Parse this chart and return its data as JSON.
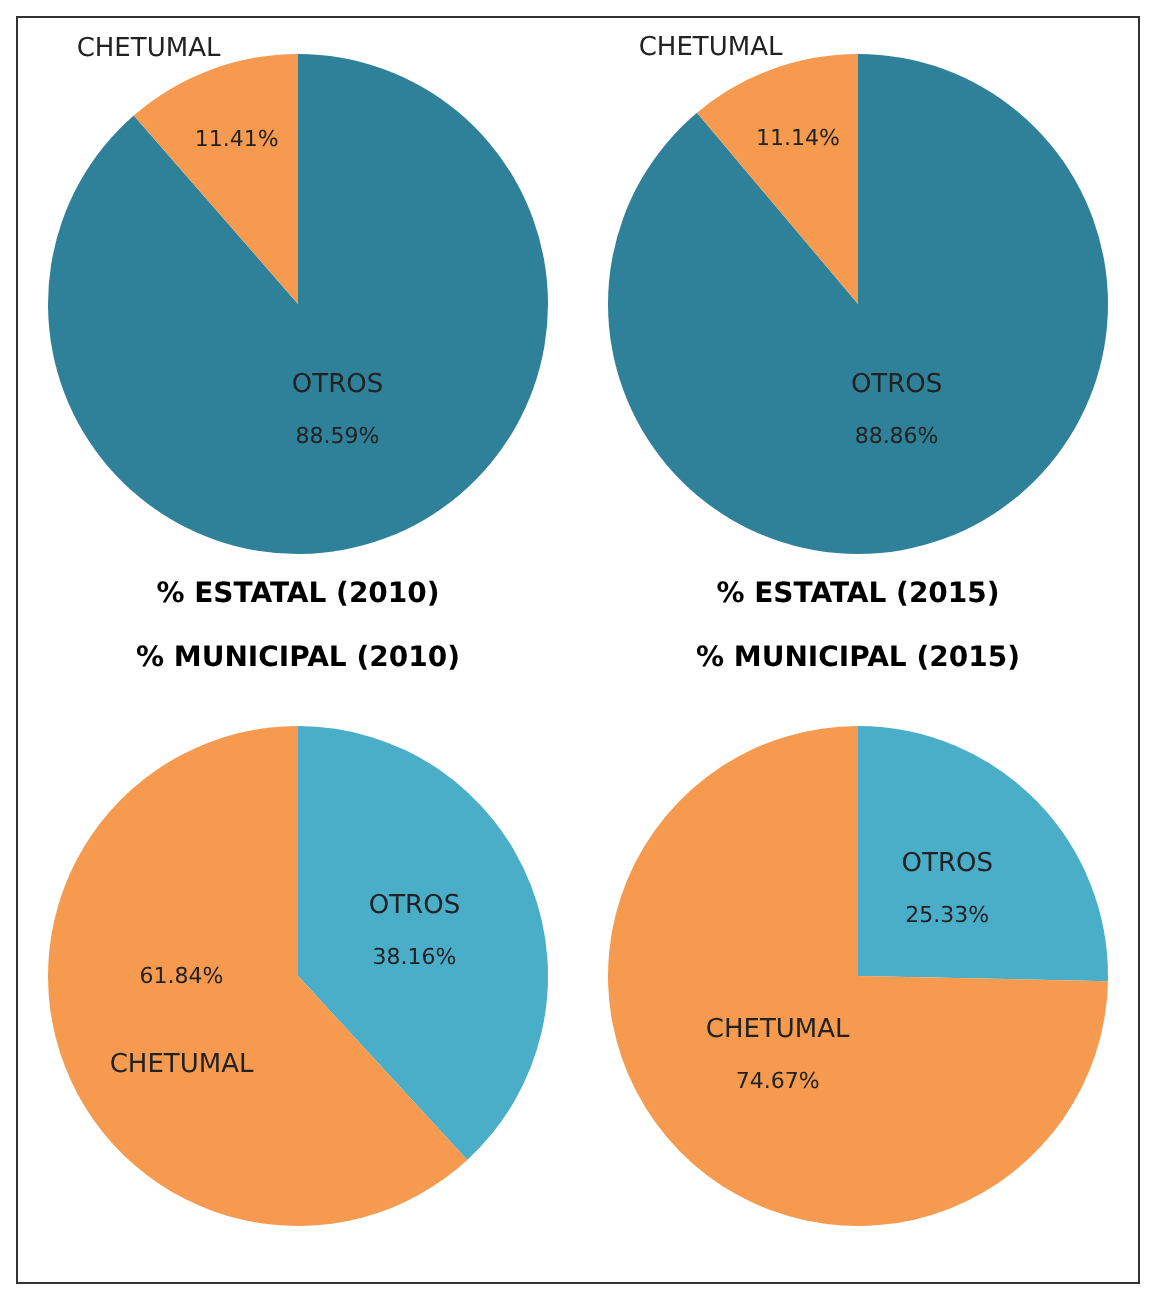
{
  "chart_data": [
    {
      "type": "pie",
      "title": "% ESTATAL (2010)",
      "categories": [
        "OTROS",
        "CHETUMAL"
      ],
      "values": [
        88.59,
        11.41
      ],
      "colors": [
        "#2e8199",
        "#f59a4e"
      ],
      "value_labels": [
        "88.59%",
        "11.41%"
      ],
      "legend": false
    },
    {
      "type": "pie",
      "title": "% ESTATAL (2015)",
      "categories": [
        "OTROS",
        "CHETUMAL"
      ],
      "values": [
        88.86,
        11.14
      ],
      "colors": [
        "#2e8199",
        "#f59a4e"
      ],
      "value_labels": [
        "88.86%",
        "11.14%"
      ],
      "legend": false
    },
    {
      "type": "pie",
      "title": "% MUNICIPAL (2010)",
      "categories": [
        "OTROS",
        "CHETUMAL"
      ],
      "values": [
        38.16,
        61.84
      ],
      "colors": [
        "#4aaec8",
        "#f59a4e"
      ],
      "value_labels": [
        "38.16%",
        "61.84%"
      ],
      "legend": false
    },
    {
      "type": "pie",
      "title": "% MUNICIPAL (2015)",
      "categories": [
        "OTROS",
        "CHETUMAL"
      ],
      "values": [
        25.33,
        74.67
      ],
      "colors": [
        "#4aaec8",
        "#f59a4e"
      ],
      "value_labels": [
        "25.33%",
        "74.67%"
      ],
      "legend": false
    }
  ]
}
